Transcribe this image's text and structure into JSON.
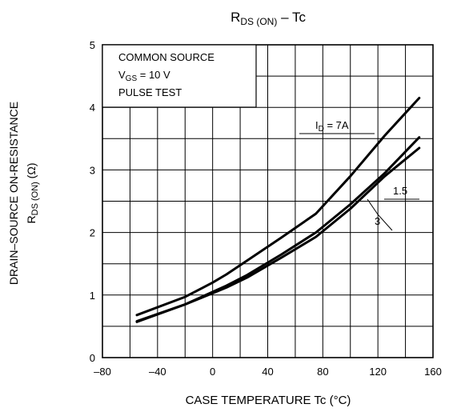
{
  "chart_data": {
    "type": "line",
    "title": {
      "main": "R",
      "sub": "DS (ON)",
      "rest": " – Tc"
    },
    "xlabel": "CASE TEMPERATURE   Tc   (°C)",
    "ylabel": {
      "line1": "DRAIN–SOURCE ON-RESISTANCE",
      "line2_main": "R",
      "line2_sub": "DS (ON)",
      "line2_unit": "(Ω)"
    },
    "xlim": [
      -80,
      160
    ],
    "ylim": [
      0,
      5
    ],
    "xticks": [
      -80,
      -40,
      0,
      40,
      80,
      120,
      160
    ],
    "yticks": [
      0,
      1,
      2,
      3,
      4,
      5
    ],
    "grid": true,
    "conditions": {
      "line1": "COMMON SOURCE",
      "line2_main": "V",
      "line2_sub": "GS",
      "line2_rest": " = 10 V",
      "line3": "PULSE TEST"
    },
    "series": [
      {
        "name_main": "I",
        "name_sub": "D",
        "name_rest": " = 7A",
        "x": [
          -55,
          -20,
          0,
          10,
          25,
          50,
          75,
          100,
          125,
          150
        ],
        "y": [
          0.68,
          0.97,
          1.2,
          1.33,
          1.55,
          1.92,
          2.3,
          2.9,
          3.55,
          4.15
        ]
      },
      {
        "name_main": "1.5",
        "name_sub": "",
        "name_rest": "",
        "x": [
          -55,
          -20,
          0,
          10,
          25,
          50,
          75,
          100,
          125,
          150
        ],
        "y": [
          0.57,
          0.85,
          1.05,
          1.15,
          1.32,
          1.65,
          2.0,
          2.45,
          2.95,
          3.52
        ]
      },
      {
        "name_main": "3",
        "name_sub": "",
        "name_rest": "",
        "x": [
          -55,
          -20,
          0,
          10,
          25,
          50,
          75,
          100,
          125,
          150
        ],
        "y": [
          0.58,
          0.85,
          1.03,
          1.12,
          1.28,
          1.6,
          1.93,
          2.38,
          2.9,
          3.35
        ]
      }
    ]
  }
}
